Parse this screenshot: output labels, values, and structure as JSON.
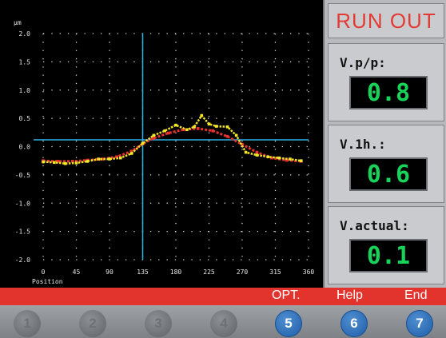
{
  "chart_data": {
    "type": "line",
    "ylabel": "μm",
    "xlabel": "Position",
    "y_ticks": [
      "2.0",
      "1.5",
      "1.0",
      "0.5",
      "0.0",
      "-0.5",
      "-1.0",
      "-1.5",
      "-2.0"
    ],
    "x_ticks": [
      "0",
      "45",
      "90",
      "135",
      "180",
      "225",
      "270",
      "315",
      "360"
    ],
    "xlim": [
      0,
      360
    ],
    "ylim": [
      -2.0,
      2.0
    ],
    "cursor": {
      "x": 135,
      "y": 0.12
    },
    "series": [
      {
        "color": "#e8322d",
        "x": [
          0,
          20,
          40,
          60,
          80,
          100,
          120,
          135,
          150,
          170,
          190,
          210,
          230,
          250,
          270,
          290,
          310,
          330,
          350
        ],
        "values": [
          -0.25,
          -0.26,
          -0.26,
          -0.24,
          -0.22,
          -0.18,
          -0.08,
          0.05,
          0.15,
          0.24,
          0.3,
          0.32,
          0.28,
          0.18,
          0.04,
          -0.1,
          -0.2,
          -0.24,
          -0.26
        ]
      },
      {
        "color": "#f4e62a",
        "x": [
          0,
          15,
          30,
          45,
          60,
          75,
          90,
          105,
          120,
          135,
          150,
          165,
          180,
          195,
          205,
          215,
          225,
          235,
          250,
          262,
          275,
          290,
          305,
          320,
          335,
          350
        ],
        "values": [
          -0.27,
          -0.28,
          -0.3,
          -0.29,
          -0.26,
          -0.22,
          -0.22,
          -0.2,
          -0.12,
          0.06,
          0.2,
          0.28,
          0.38,
          0.3,
          0.35,
          0.55,
          0.4,
          0.36,
          0.35,
          0.2,
          -0.1,
          -0.15,
          -0.18,
          -0.2,
          -0.22,
          -0.25
        ]
      }
    ],
    "grid": true
  },
  "panel": {
    "title": "RUN OUT",
    "color_title": "#e33b34",
    "color_value": "#18d35a",
    "items": [
      {
        "label": "V.p/p:",
        "value": "0.8"
      },
      {
        "label": "V.1h.:",
        "value": "0.6"
      },
      {
        "label": "V.actual:",
        "value": "0.1"
      }
    ]
  },
  "options_bar": {
    "opt": "OPT.",
    "help": "Help",
    "end": "End",
    "color": "#e2332d"
  },
  "keys": [
    "1",
    "2",
    "3",
    "4",
    "5",
    "6",
    "7"
  ],
  "keys_active": [
    "5",
    "6",
    "7"
  ]
}
